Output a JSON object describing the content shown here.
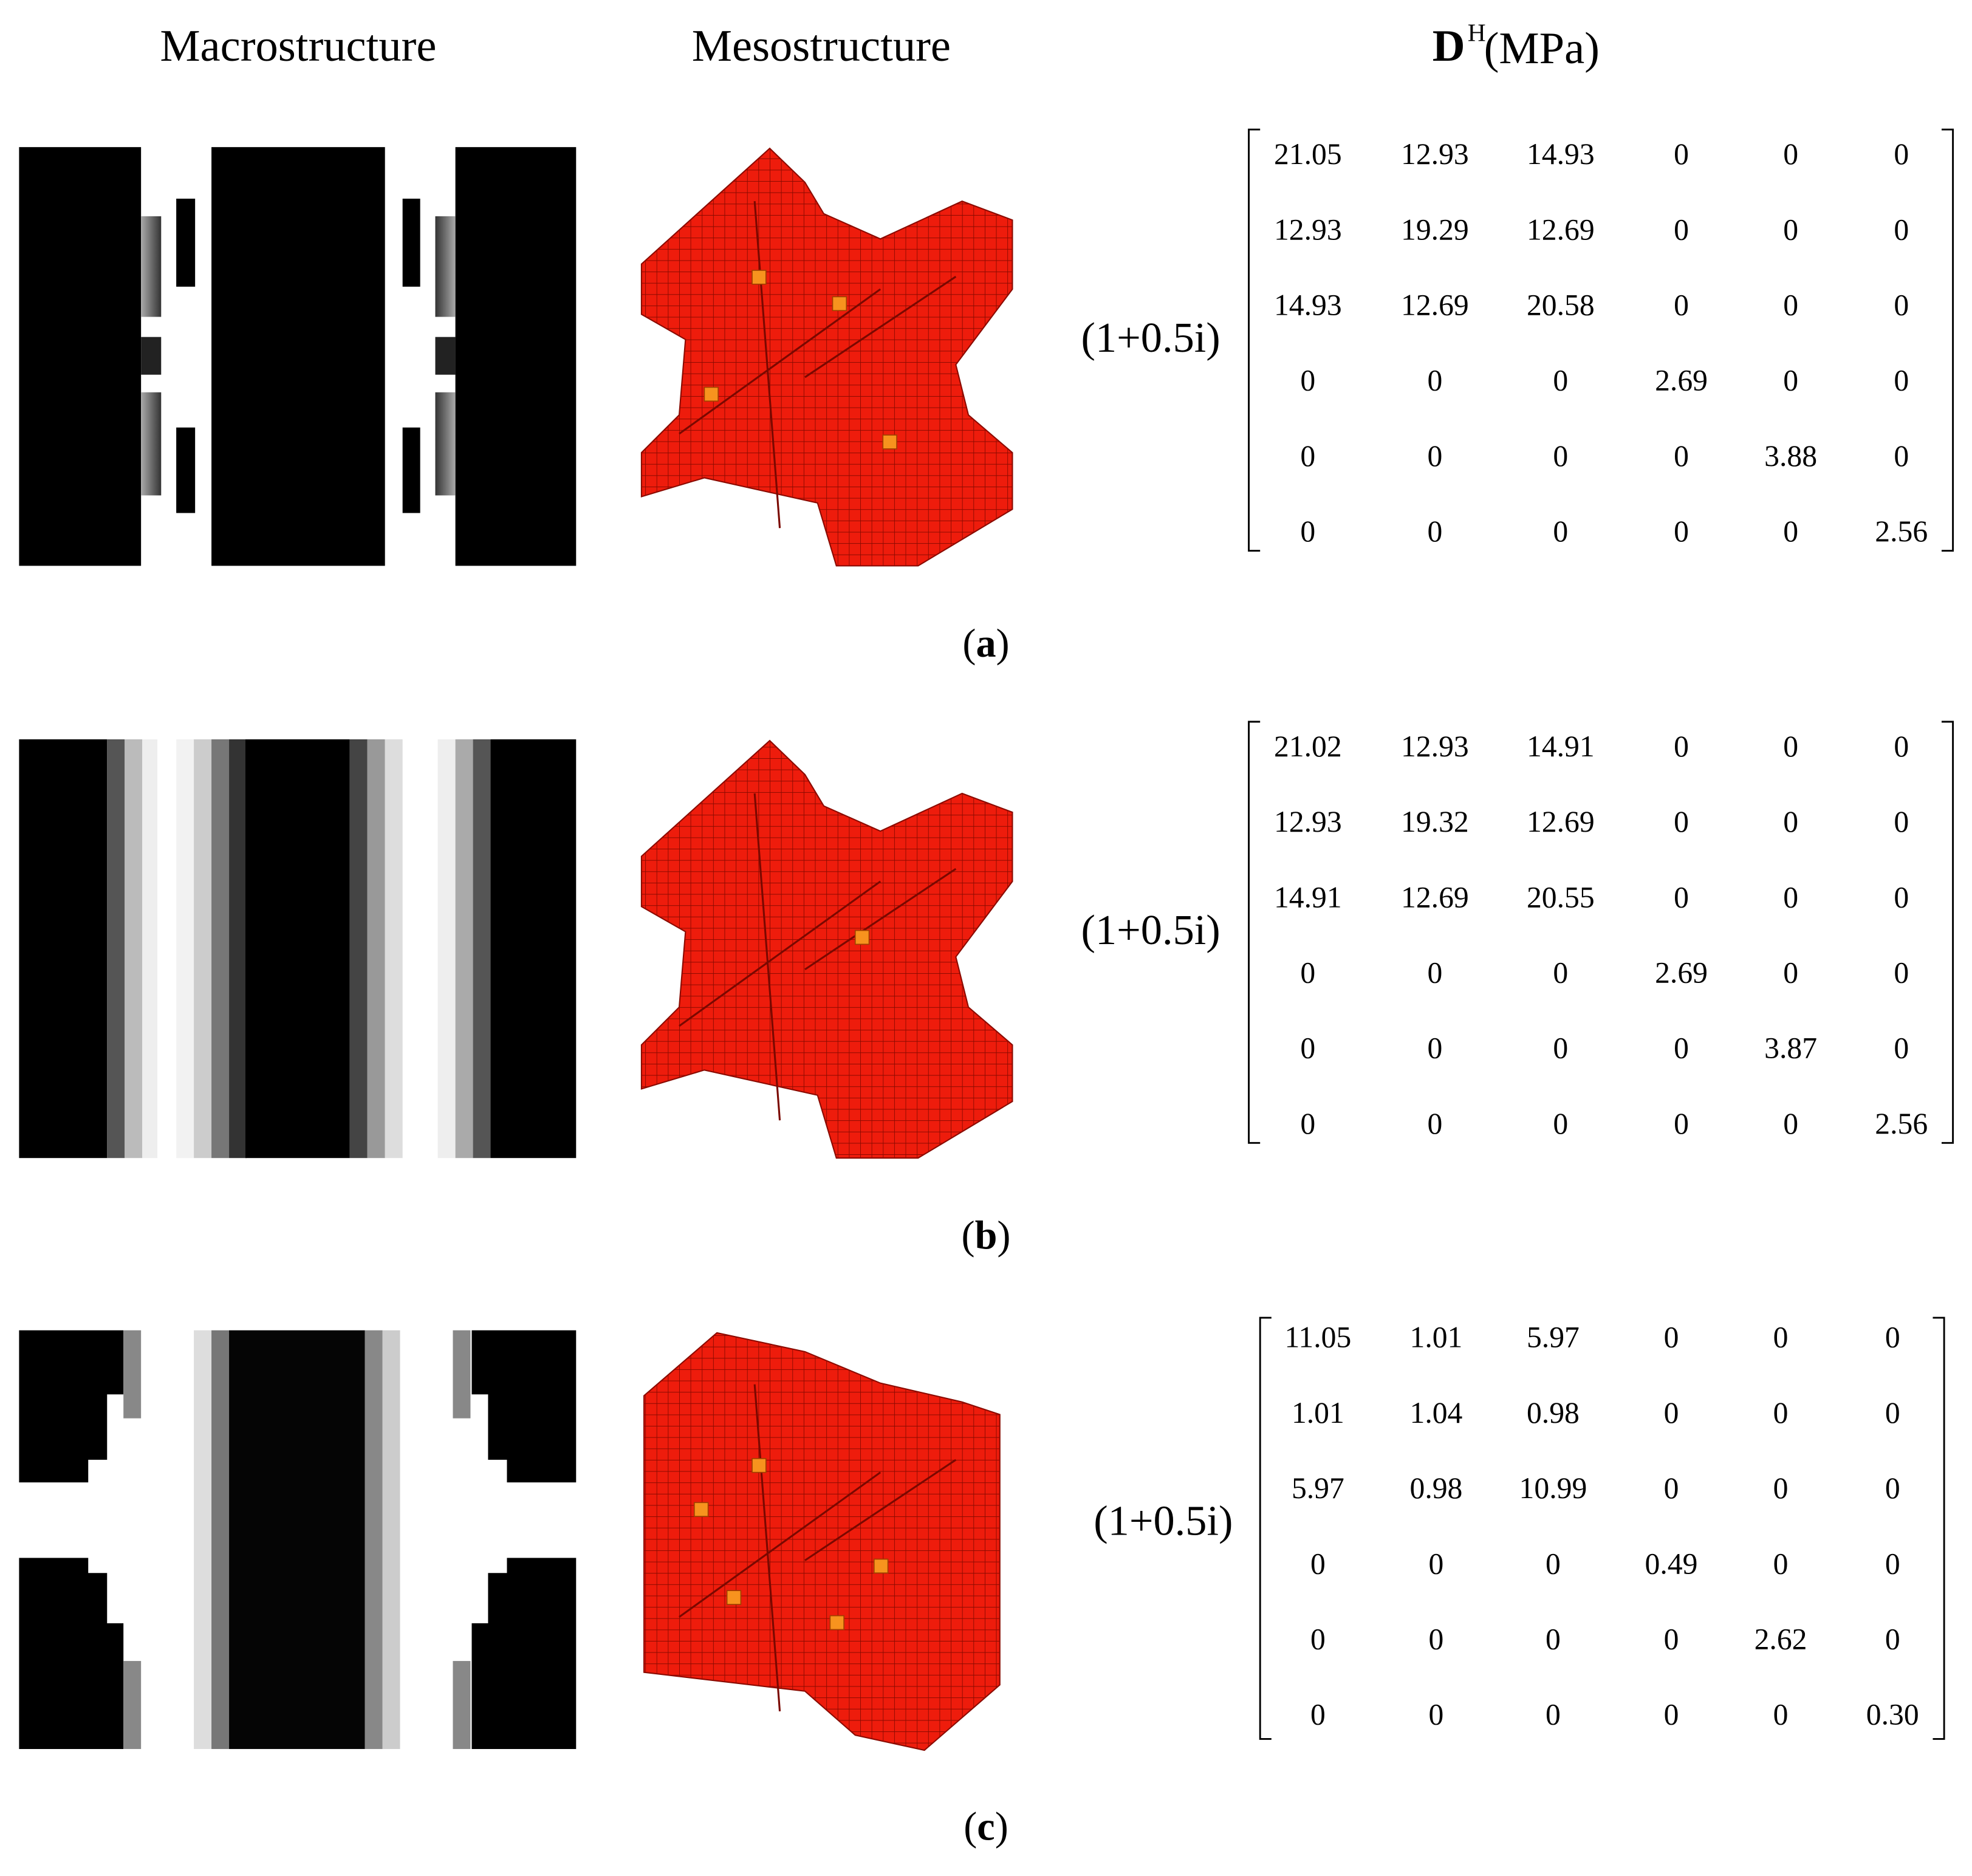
{
  "header": {
    "macro": "Macrostructure",
    "meso": "Mesostructure",
    "matrix_symbol": "D",
    "matrix_superscript": "H",
    "matrix_unit": "(MPa)"
  },
  "panels": [
    {
      "factor": "(1+0.5i)",
      "matrix": [
        [
          "21.05",
          "12.93",
          "14.93",
          "0",
          "0",
          "0"
        ],
        [
          "12.93",
          "19.29",
          "12.69",
          "0",
          "0",
          "0"
        ],
        [
          "14.93",
          "12.69",
          "20.58",
          "0",
          "0",
          "0"
        ],
        [
          "0",
          "0",
          "0",
          "2.69",
          "0",
          "0"
        ],
        [
          "0",
          "0",
          "0",
          "0",
          "3.88",
          "0"
        ],
        [
          "0",
          "0",
          "0",
          "0",
          "0",
          "2.56"
        ]
      ],
      "caption": {
        "open": "(",
        "letter": "a",
        "close": ")"
      }
    },
    {
      "factor": "(1+0.5i)",
      "matrix": [
        [
          "21.02",
          "12.93",
          "14.91",
          "0",
          "0",
          "0"
        ],
        [
          "12.93",
          "19.32",
          "12.69",
          "0",
          "0",
          "0"
        ],
        [
          "14.91",
          "12.69",
          "20.55",
          "0",
          "0",
          "0"
        ],
        [
          "0",
          "0",
          "0",
          "2.69",
          "0",
          "0"
        ],
        [
          "0",
          "0",
          "0",
          "0",
          "3.87",
          "0"
        ],
        [
          "0",
          "0",
          "0",
          "0",
          "0",
          "2.56"
        ]
      ],
      "caption": {
        "open": "(",
        "letter": "b",
        "close": ")"
      }
    },
    {
      "factor": "(1+0.5i)",
      "matrix": [
        [
          "11.05",
          "1.01",
          "5.97",
          "0",
          "0",
          "0"
        ],
        [
          "1.01",
          "1.04",
          "0.98",
          "0",
          "0",
          "0"
        ],
        [
          "5.97",
          "0.98",
          "10.99",
          "0",
          "0",
          "0"
        ],
        [
          "0",
          "0",
          "0",
          "0.49",
          "0",
          "0"
        ],
        [
          "0",
          "0",
          "0",
          "0",
          "2.62",
          "0"
        ],
        [
          "0",
          "0",
          "0",
          "0",
          "0",
          "0.30"
        ]
      ],
      "caption": {
        "open": "(",
        "letter": "c",
        "close": ")"
      }
    }
  ]
}
